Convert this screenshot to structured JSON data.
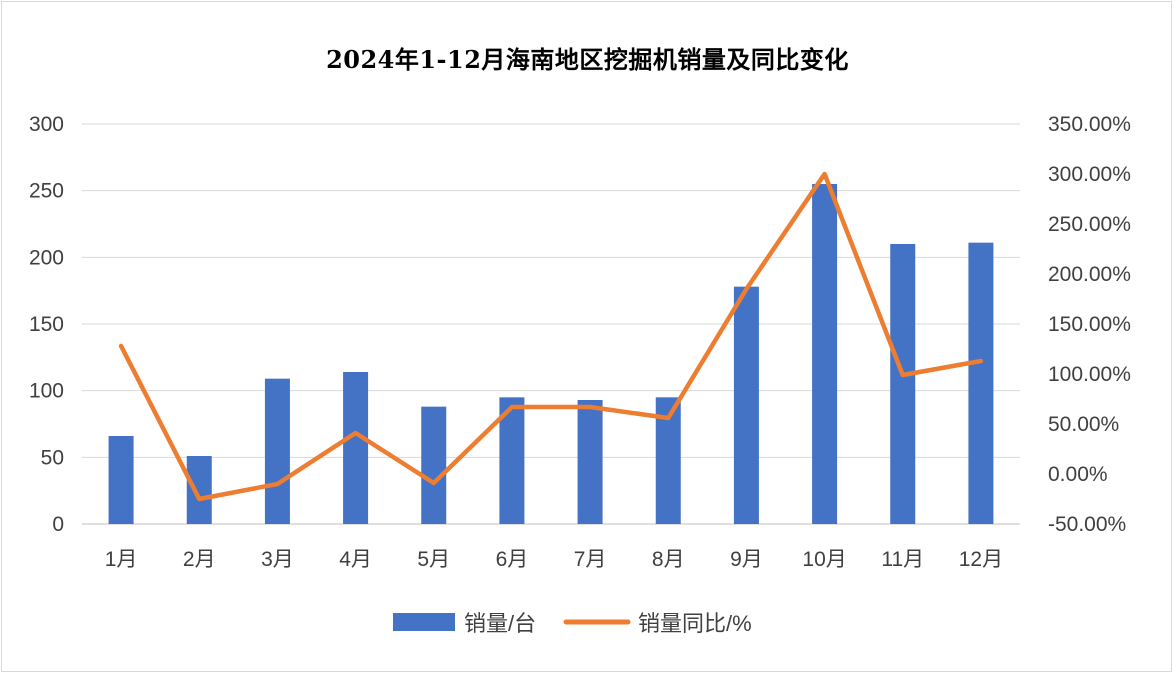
{
  "chart_data": {
    "type": "bar",
    "title": "2024年1-12月海南地区挖掘机销量及同比变化",
    "categories": [
      "1月",
      "2月",
      "3月",
      "4月",
      "5月",
      "6月",
      "7月",
      "8月",
      "9月",
      "10月",
      "11月",
      "12月"
    ],
    "series": [
      {
        "name": "销量/台",
        "type": "bar",
        "axis": "left",
        "color": "#4472c4",
        "values": [
          66,
          51,
          109,
          114,
          88,
          95,
          93,
          95,
          178,
          255,
          210,
          211
        ]
      },
      {
        "name": "销量同比/%",
        "type": "line",
        "axis": "right",
        "color": "#ed7d31",
        "values": [
          128.0,
          -25.0,
          -10.0,
          41.0,
          -9.0,
          67.0,
          67.0,
          56.0,
          185.0,
          300.0,
          99.0,
          113.0
        ]
      }
    ],
    "y_left": {
      "min": 0,
      "max": 300,
      "ticks": [
        0,
        50,
        100,
        150,
        200,
        250,
        300
      ]
    },
    "y_right": {
      "min": -50,
      "max": 350,
      "ticks": [
        -50,
        0,
        50,
        100,
        150,
        200,
        250,
        300,
        350
      ],
      "tick_labels": [
        "-50.00%",
        "0.00%",
        "50.00%",
        "100.00%",
        "150.00%",
        "200.00%",
        "250.00%",
        "300.00%",
        "350.00%"
      ]
    },
    "grid": true,
    "legend": "bottom"
  }
}
